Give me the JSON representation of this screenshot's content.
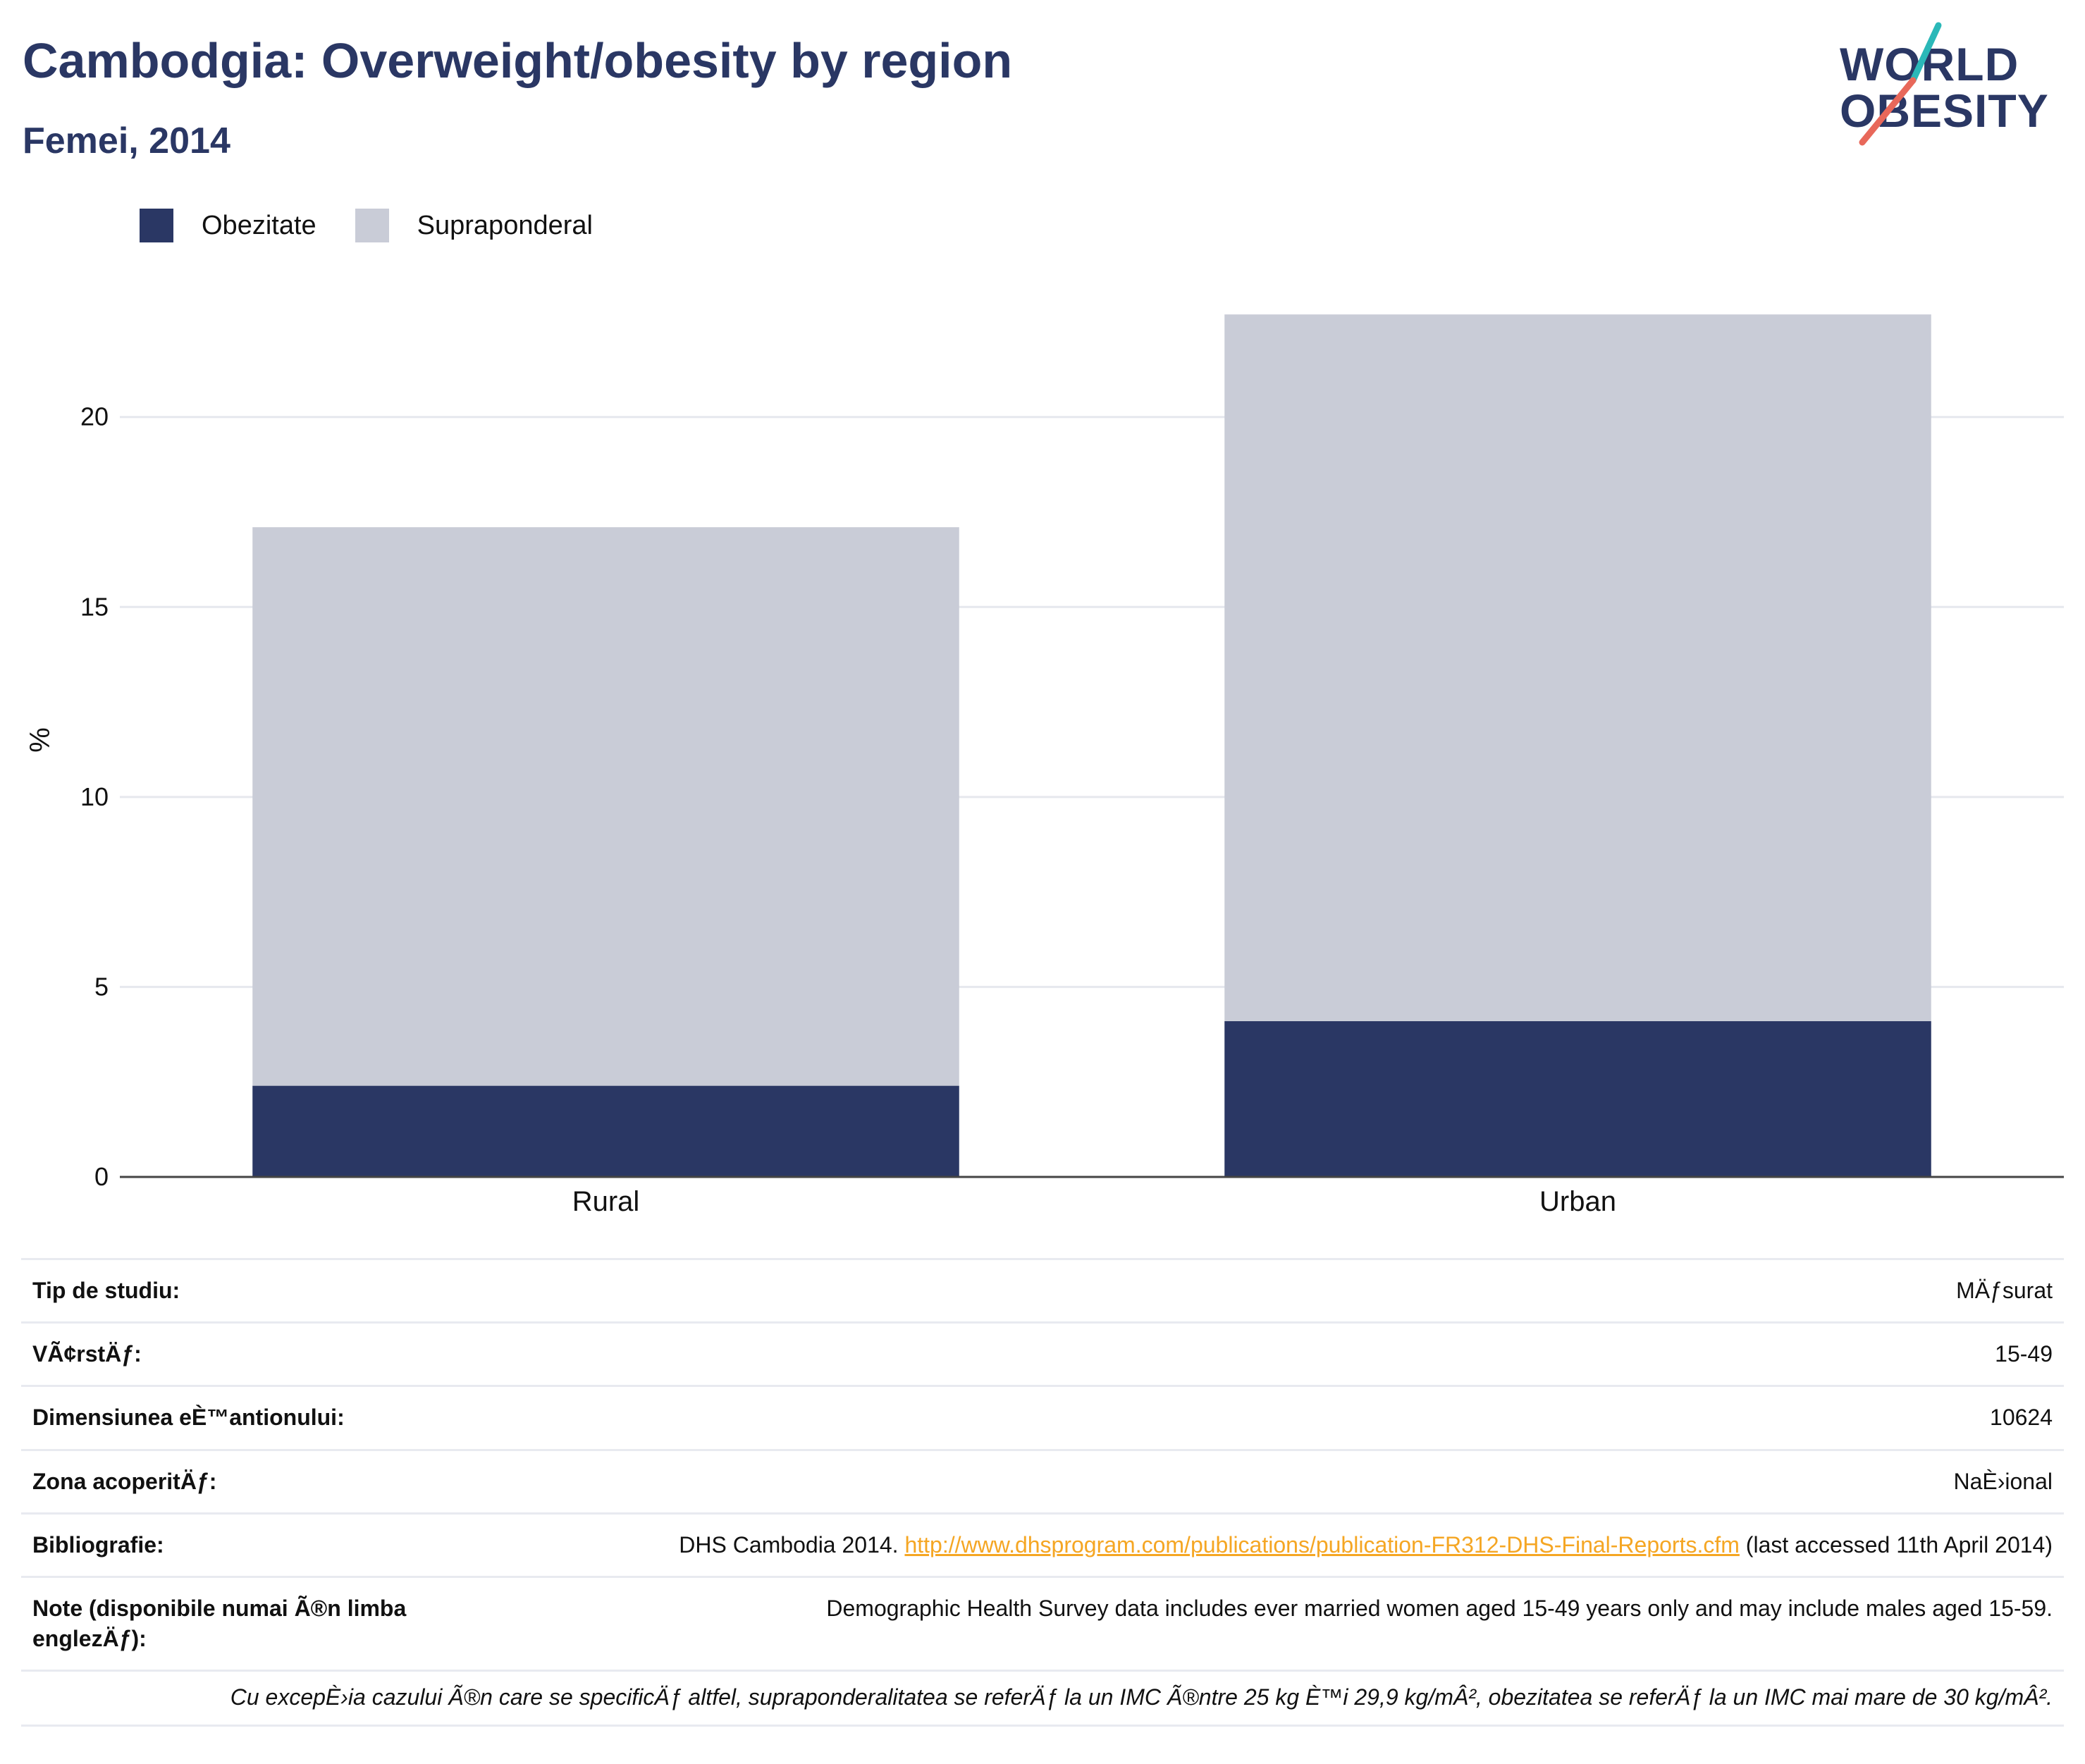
{
  "header": {
    "title": "Cambodgia: Overweight/obesity by region",
    "subtitle": "Femei, 2014"
  },
  "logo": {
    "line1": "WORLD",
    "line2": "OBESITY",
    "colors": {
      "text": "#2a3764",
      "slash_top": "#2bb8b8",
      "slash_bottom": "#e8685a"
    }
  },
  "legend": [
    {
      "label": "Obezitate",
      "color": "#2a3764"
    },
    {
      "label": "Supraponderal",
      "color": "#c9ccd7"
    }
  ],
  "chart_data": {
    "type": "bar",
    "stacked": true,
    "categories": [
      "Rural",
      "Urban"
    ],
    "series": [
      {
        "name": "Obezitate",
        "values": [
          2.4,
          4.1
        ],
        "color": "#2a3764"
      },
      {
        "name": "Supraponderal",
        "values": [
          14.7,
          18.6
        ],
        "color": "#c9ccd7"
      }
    ],
    "ylabel": "%",
    "ylim": [
      0,
      23
    ],
    "yticks": [
      0,
      5,
      10,
      15,
      20
    ],
    "grid": true,
    "legend_position": "top-left"
  },
  "meta": {
    "rows": [
      {
        "key": "Tip de studiu:",
        "value": "MÄƒsurat"
      },
      {
        "key": "VÃ¢rstÄƒ:",
        "value": "15-49"
      },
      {
        "key": "Dimensiunea eÈ™antionului:",
        "value": "10624"
      },
      {
        "key": "Zona acoperitÄƒ:",
        "value": "NaÈ›ional"
      }
    ],
    "bibliography": {
      "key": "Bibliografie:",
      "prefix": "DHS Cambodia 2014. ",
      "link": "http://www.dhsprogram.com/publications/publication-FR312-DHS-Final-Reports.cfm",
      "suffix": " (last accessed 11th April 2014)"
    },
    "notes": {
      "key": "Note (disponibile numai Ã®n limba englezÄƒ):",
      "value": "Demographic Health Survey data includes ever married women aged 15-49 years only and may include males aged 15-59."
    }
  },
  "footnote": "Cu excepÈ›ia cazului Ã®n care se specificÄƒ altfel, supraponderalitatea se referÄƒ la un IMC Ã®ntre 25 kg È™i 29,9 kg/mÂ², obezitatea se referÄƒ la un IMC mai mare de 30 kg/mÂ²."
}
